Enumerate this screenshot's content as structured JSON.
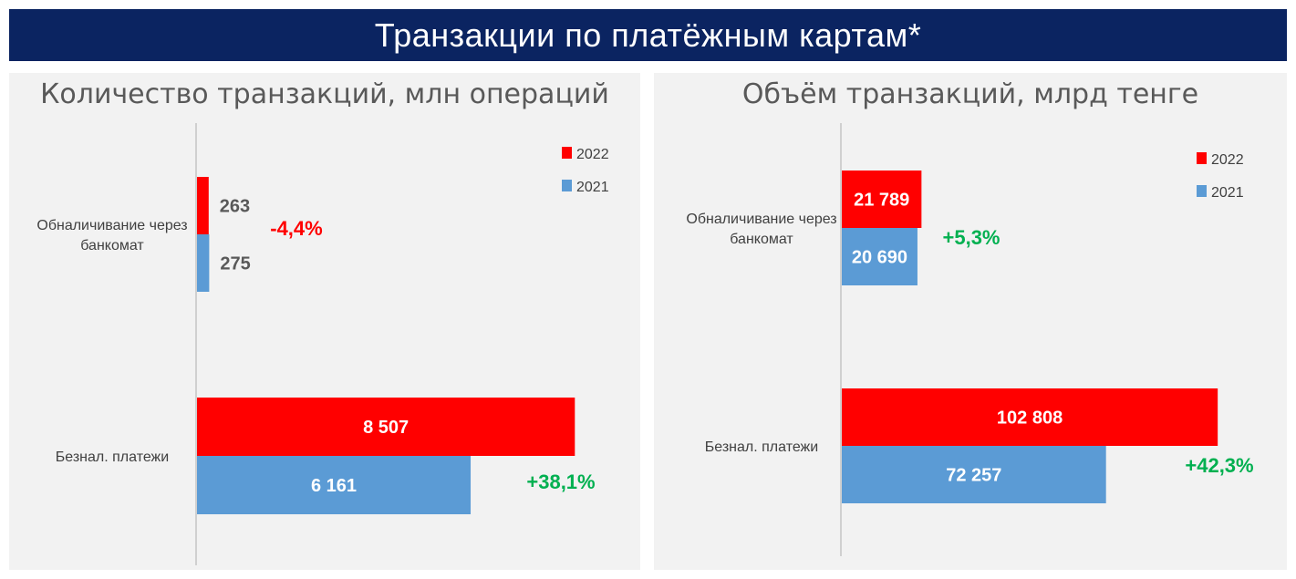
{
  "header": {
    "title": "Транзакции по платёжным картам*"
  },
  "colors": {
    "header_bg": "#0b2461",
    "series_2022": "#ff0000",
    "series_2021": "#5b9bd5",
    "negative": "#ff0000",
    "positive": "#00b050",
    "label_dark": "#595959"
  },
  "chart_data": [
    {
      "type": "bar",
      "orientation": "horizontal",
      "title": "Количество транзакций, млн операций",
      "categories": [
        "Обналичивание через банкомат",
        "Безнал. платежи"
      ],
      "series": [
        {
          "name": "2022",
          "values": [
            263,
            8507
          ],
          "labels": [
            "263",
            "8 507"
          ]
        },
        {
          "name": "2021",
          "values": [
            275,
            6161
          ],
          "labels": [
            "275",
            "6 161"
          ]
        }
      ],
      "changes": [
        "-4,4%",
        "+38,1%"
      ],
      "legend": "top-right"
    },
    {
      "type": "bar",
      "orientation": "horizontal",
      "title": "Объём транзакций, млрд тенге",
      "categories": [
        "Обналичивание через банкомат",
        "Безнал. платежи"
      ],
      "series": [
        {
          "name": "2022",
          "values": [
            21789,
            102808
          ],
          "labels": [
            "21 789",
            "102 808"
          ]
        },
        {
          "name": "2021",
          "values": [
            20690,
            72257
          ],
          "labels": [
            "20 690",
            "72 257"
          ]
        }
      ],
      "changes": [
        "+5,3%",
        "+42,3%"
      ],
      "legend": "top-right"
    }
  ]
}
